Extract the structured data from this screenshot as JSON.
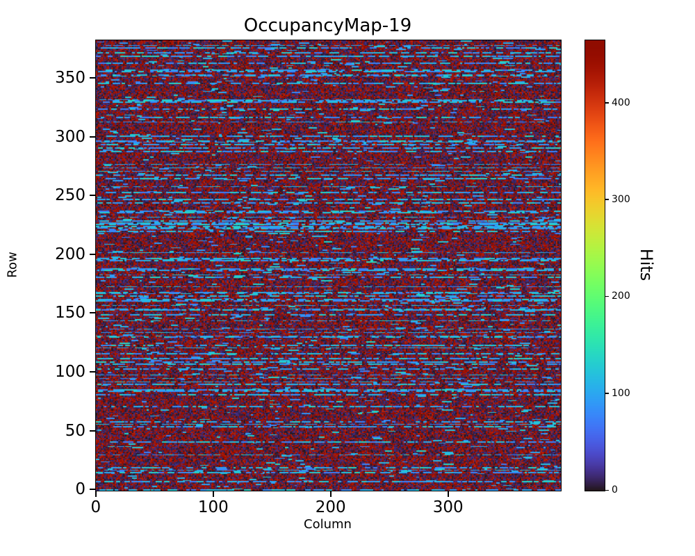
{
  "figure": {
    "background_color": "#ffffff",
    "text_color": "#000000"
  },
  "chart_data": {
    "type": "heatmap",
    "title": "OccupancyMap-19",
    "xlabel": "Column",
    "ylabel": "Row",
    "x_ticks": [
      0,
      100,
      200,
      300
    ],
    "y_ticks": [
      0,
      50,
      100,
      150,
      200,
      250,
      300,
      350
    ],
    "x_range": [
      0,
      396
    ],
    "y_range": [
      0,
      383
    ],
    "grid": {
      "cols": 396,
      "rows": 383
    },
    "colormap": "turbo",
    "colors": {
      "low_value": "#30123b",
      "high_value": "#7a0403",
      "streak_blue": "#3e9bfe"
    },
    "colorbar": {
      "label": "Hits",
      "ticks": [
        0,
        100,
        200,
        300,
        400
      ],
      "vmin": 0,
      "vmax": 465,
      "position": "right"
    },
    "grid_lines": false,
    "legend": false,
    "pattern": {
      "description": "Dark mottled occupancy map: most pixels are near-zero (dark blue) or near-max (dark red) hits, with horizontal dashed bright-blue streaks of roughly 70-140 hits scattered on many rows.",
      "seed": 19,
      "bg_low_prob": 0.55,
      "bg_low_max": 20,
      "bg_high_min": 415,
      "bg_high_max": 460,
      "streak_row_prob": 0.22,
      "dash_start_prob": 0.25,
      "dash_len_min": 2,
      "dash_len_max": 9,
      "dash_val_min": 70,
      "dash_val_max": 140,
      "sparse_dash_prob": 0.008
    }
  }
}
